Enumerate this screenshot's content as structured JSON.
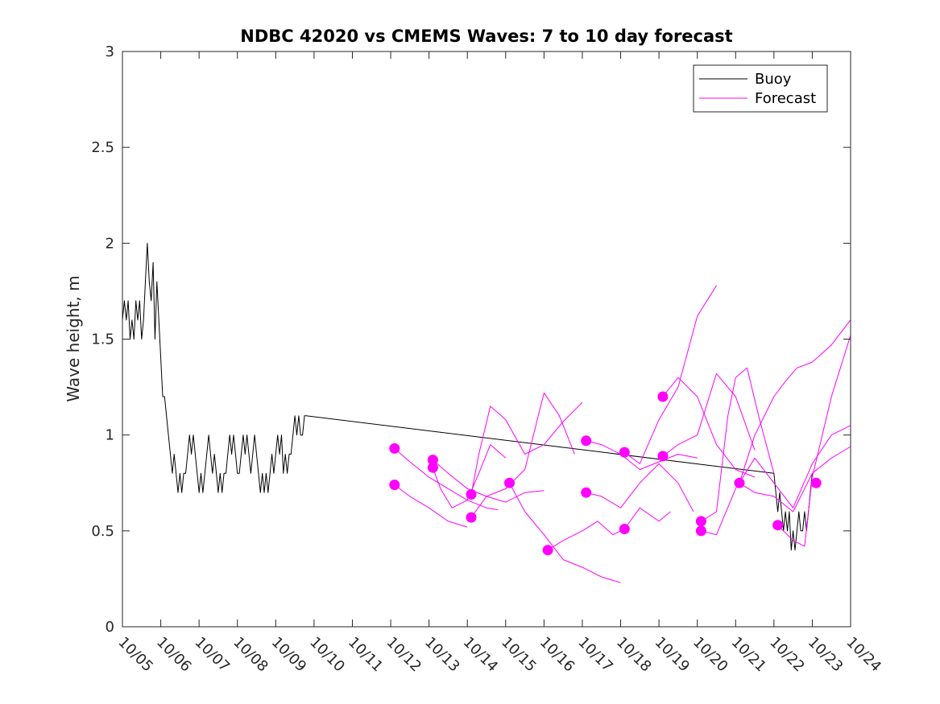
{
  "chart_data": {
    "type": "line",
    "title": "NDBC 42020 vs CMEMS Waves: 7 to 10 day forecast",
    "xlabel": "",
    "ylabel": "Wave height, m",
    "xlim": [
      0,
      19
    ],
    "ylim": [
      0,
      3
    ],
    "categories": [
      "10/05",
      "10/06",
      "10/07",
      "10/08",
      "10/09",
      "10/10",
      "10/11",
      "10/12",
      "10/13",
      "10/14",
      "10/15",
      "10/16",
      "10/17",
      "10/18",
      "10/19",
      "10/20",
      "10/21",
      "10/22",
      "10/23",
      "10/24"
    ],
    "yticks": [
      "0",
      "0.5",
      "1",
      "1.5",
      "2",
      "2.5",
      "3"
    ],
    "legend": {
      "placement": "top-right",
      "entries": [
        {
          "label": "Buoy",
          "color": "#000000"
        },
        {
          "label": "Forecast",
          "color": "#ff00ff"
        }
      ]
    },
    "series": [
      {
        "name": "Buoy",
        "color": "#000000",
        "x": [
          0,
          0.05,
          0.1,
          0.15,
          0.2,
          0.25,
          0.3,
          0.35,
          0.4,
          0.45,
          0.5,
          0.55,
          0.6,
          0.65,
          0.7,
          0.75,
          0.8,
          0.85,
          0.9,
          0.95,
          1.0,
          1.05,
          1.1,
          1.15,
          1.2,
          1.25,
          1.3,
          1.35,
          1.4,
          1.45,
          1.5,
          1.55,
          1.6,
          1.65,
          1.7,
          1.75,
          1.8,
          1.85,
          1.9,
          1.95,
          2.0,
          2.05,
          2.1,
          2.15,
          2.2,
          2.25,
          2.3,
          2.35,
          2.4,
          2.45,
          2.5,
          2.55,
          2.6,
          2.65,
          2.7,
          2.75,
          2.8,
          2.85,
          2.9,
          2.95,
          3.0,
          3.05,
          3.1,
          3.15,
          3.2,
          3.25,
          3.3,
          3.35,
          3.4,
          3.45,
          3.5,
          3.55,
          3.6,
          3.65,
          3.7,
          3.75,
          3.8,
          3.85,
          3.9,
          3.95,
          4.0,
          4.05,
          4.1,
          4.15,
          4.2,
          4.25,
          4.3,
          4.35,
          4.4,
          4.45,
          4.5,
          4.55,
          4.6,
          4.65,
          4.7,
          4.75,
          4.8,
          17.0,
          17.05,
          17.1,
          17.15,
          17.2,
          17.25,
          17.3,
          17.35,
          17.4,
          17.45,
          17.5,
          17.55,
          17.6,
          17.65,
          17.7,
          17.75,
          17.8,
          17.85,
          17.9,
          17.95,
          18.0
        ],
        "values": [
          1.6,
          1.7,
          1.6,
          1.7,
          1.5,
          1.6,
          1.5,
          1.7,
          1.6,
          1.7,
          1.5,
          1.6,
          1.8,
          2.0,
          1.8,
          1.7,
          1.9,
          1.5,
          1.8,
          1.6,
          1.4,
          1.2,
          1.2,
          1.1,
          1.0,
          0.9,
          0.8,
          0.9,
          0.8,
          0.7,
          0.8,
          0.7,
          0.8,
          0.8,
          0.9,
          1.0,
          0.9,
          1.0,
          0.9,
          0.8,
          0.7,
          0.8,
          0.7,
          0.8,
          0.9,
          1.0,
          0.9,
          0.8,
          0.9,
          0.8,
          0.7,
          0.8,
          0.7,
          0.8,
          0.8,
          0.9,
          1.0,
          0.9,
          1.0,
          0.9,
          0.8,
          0.8,
          0.9,
          1.0,
          0.9,
          1.0,
          0.9,
          0.8,
          0.9,
          1.0,
          0.9,
          0.8,
          0.7,
          0.8,
          0.7,
          0.8,
          0.7,
          0.8,
          0.9,
          0.8,
          0.9,
          1.0,
          0.9,
          1.0,
          0.8,
          0.9,
          0.8,
          0.9,
          0.9,
          1.0,
          1.1,
          1.0,
          1.1,
          1.0,
          1.0,
          1.1,
          1.1,
          0.8,
          0.7,
          0.6,
          0.7,
          0.6,
          0.5,
          0.6,
          0.5,
          0.6,
          0.4,
          0.5,
          0.4,
          0.5,
          0.6,
          0.5,
          0.5,
          0.6,
          0.5,
          0.6,
          0.7,
          0.8
        ]
      },
      {
        "name": "Forecast",
        "color": "#ff00ff",
        "x": [
          7.1,
          7.5,
          8.0,
          8.5,
          9.0
        ],
        "values": [
          0.74,
          0.68,
          0.62,
          0.55,
          0.52
        ]
      },
      {
        "name": "Forecast",
        "color": "#ff00ff",
        "x": [
          7.1,
          7.5,
          8.0,
          8.5,
          9.0,
          9.5,
          9.8
        ],
        "values": [
          0.93,
          0.86,
          0.78,
          0.72,
          0.66,
          0.62,
          0.61
        ]
      },
      {
        "name": "Forecast",
        "color": "#ff00ff",
        "x": [
          8.1,
          8.3,
          8.6,
          9.0,
          9.3,
          9.6,
          10.0
        ],
        "values": [
          0.83,
          0.72,
          0.62,
          0.66,
          0.8,
          0.95,
          0.88
        ]
      },
      {
        "name": "Forecast",
        "color": "#ff00ff",
        "x": [
          8.1,
          8.5,
          9.0,
          9.5,
          10.0,
          10.5,
          11.0
        ],
        "values": [
          0.87,
          0.8,
          0.72,
          0.68,
          0.65,
          0.7,
          0.71
        ]
      },
      {
        "name": "Forecast",
        "color": "#ff00ff",
        "x": [
          9.1,
          9.3,
          9.6,
          10.0,
          10.5,
          11.0,
          11.5,
          12.0
        ],
        "values": [
          0.69,
          0.9,
          1.15,
          1.08,
          0.9,
          0.95,
          1.07,
          1.17
        ]
      },
      {
        "name": "Forecast",
        "color": "#ff00ff",
        "x": [
          9.1,
          9.5,
          10.0,
          10.5,
          11.0,
          11.4,
          11.8
        ],
        "values": [
          0.57,
          0.68,
          0.72,
          0.82,
          1.22,
          1.1,
          0.9
        ]
      },
      {
        "name": "Forecast",
        "color": "#ff00ff",
        "x": [
          10.1,
          10.5,
          11.0,
          11.5,
          12.0,
          12.5,
          13.0
        ],
        "values": [
          0.75,
          0.6,
          0.48,
          0.35,
          0.31,
          0.26,
          0.23
        ]
      },
      {
        "name": "Forecast",
        "color": "#ff00ff",
        "x": [
          11.1,
          11.5,
          12.0,
          12.4,
          12.8,
          13.2
        ],
        "values": [
          0.4,
          0.45,
          0.5,
          0.55,
          0.48,
          0.52
        ]
      },
      {
        "name": "Forecast",
        "color": "#ff00ff",
        "x": [
          12.1,
          12.5,
          13.0,
          13.5,
          14.0,
          14.5,
          15.0
        ],
        "values": [
          0.97,
          0.95,
          0.9,
          0.82,
          0.86,
          0.9,
          0.88
        ]
      },
      {
        "name": "Forecast",
        "color": "#ff00ff",
        "x": [
          12.1,
          12.5,
          13.0,
          13.5,
          14.0,
          14.5,
          14.9
        ],
        "values": [
          0.7,
          0.68,
          0.62,
          0.75,
          0.85,
          0.75,
          0.6
        ]
      },
      {
        "name": "Forecast",
        "color": "#ff00ff",
        "x": [
          13.1,
          13.5,
          14.0,
          14.5,
          15.0,
          15.5
        ],
        "values": [
          0.91,
          0.85,
          1.08,
          1.25,
          1.62,
          1.78
        ]
      },
      {
        "name": "Forecast",
        "color": "#ff00ff",
        "x": [
          13.1,
          13.5,
          14.0,
          14.3
        ],
        "values": [
          0.51,
          0.62,
          0.55,
          0.6
        ]
      },
      {
        "name": "Forecast",
        "color": "#ff00ff",
        "x": [
          14.1,
          14.5,
          15.0,
          15.5,
          16.0,
          16.5
        ],
        "values": [
          1.2,
          1.3,
          1.2,
          0.95,
          0.82,
          0.78
        ]
      },
      {
        "name": "Forecast",
        "color": "#ff00ff",
        "x": [
          14.1,
          14.5,
          15.0,
          15.5,
          16.0,
          16.5
        ],
        "values": [
          0.89,
          0.95,
          1.0,
          1.32,
          1.2,
          0.92
        ]
      },
      {
        "name": "Forecast",
        "color": "#ff00ff",
        "x": [
          15.1,
          15.5,
          15.8,
          16.0,
          16.3,
          16.6,
          17.0
        ],
        "values": [
          0.55,
          0.6,
          1.1,
          1.3,
          1.35,
          1.1,
          0.8
        ]
      },
      {
        "name": "Forecast",
        "color": "#ff00ff",
        "x": [
          15.1,
          15.5,
          16.0,
          16.5,
          17.0,
          17.5,
          18.0,
          18.5,
          19.0
        ],
        "values": [
          0.5,
          0.48,
          0.72,
          0.88,
          0.75,
          0.62,
          0.85,
          1.0,
          1.05
        ]
      },
      {
        "name": "Forecast",
        "color": "#ff00ff",
        "x": [
          16.1,
          16.5,
          17.0,
          17.5,
          18.0,
          18.5,
          19.0
        ],
        "values": [
          0.75,
          0.7,
          0.68,
          0.6,
          0.8,
          0.88,
          0.94
        ]
      },
      {
        "name": "Forecast",
        "color": "#ff00ff",
        "x": [
          16.1,
          16.5,
          17.0,
          17.3,
          17.6,
          18.0,
          18.5,
          19.0
        ],
        "values": [
          0.75,
          1.0,
          1.2,
          1.28,
          1.35,
          1.38,
          1.47,
          1.6
        ]
      },
      {
        "name": "Forecast",
        "color": "#ff00ff",
        "x": [
          17.1,
          17.5,
          17.8,
          18.0,
          18.5,
          19.0
        ],
        "values": [
          0.53,
          0.45,
          0.42,
          0.78,
          1.2,
          1.52
        ]
      }
    ],
    "markers": [
      {
        "x": 7.1,
        "y": 0.74
      },
      {
        "x": 7.1,
        "y": 0.93
      },
      {
        "x": 8.1,
        "y": 0.87
      },
      {
        "x": 8.1,
        "y": 0.83
      },
      {
        "x": 9.1,
        "y": 0.69
      },
      {
        "x": 9.1,
        "y": 0.57
      },
      {
        "x": 10.1,
        "y": 0.75
      },
      {
        "x": 11.1,
        "y": 0.4
      },
      {
        "x": 12.1,
        "y": 0.97
      },
      {
        "x": 12.1,
        "y": 0.7
      },
      {
        "x": 13.1,
        "y": 0.91
      },
      {
        "x": 13.1,
        "y": 0.51
      },
      {
        "x": 14.1,
        "y": 1.2
      },
      {
        "x": 14.1,
        "y": 0.89
      },
      {
        "x": 15.1,
        "y": 0.55
      },
      {
        "x": 15.1,
        "y": 0.5
      },
      {
        "x": 16.1,
        "y": 0.75
      },
      {
        "x": 17.1,
        "y": 0.53
      },
      {
        "x": 18.1,
        "y": 0.75
      }
    ]
  }
}
